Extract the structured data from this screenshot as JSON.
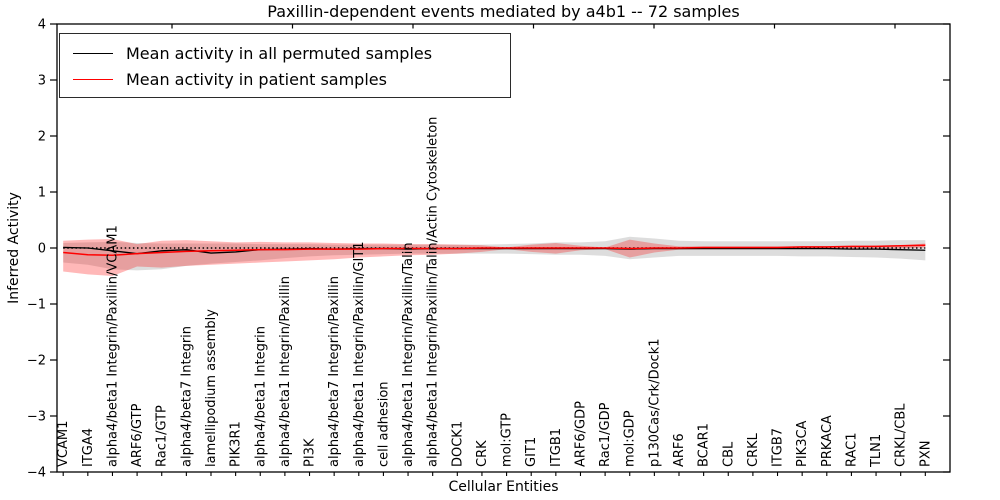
{
  "chart_data": {
    "type": "line",
    "title": "Paxillin-dependent events mediated by a4b1 -- 72 samples",
    "xlabel": "Cellular Entities",
    "ylabel": "Inferred Activity",
    "ylim": [
      -4,
      4
    ],
    "grid": false,
    "legend_position": "upper left",
    "baseline": {
      "y": 0,
      "style": "dotted",
      "color": "#000000"
    },
    "yticks": [
      4,
      3,
      2,
      1,
      0,
      -1,
      -2,
      -3,
      -4
    ],
    "ytick_labels": [
      "4",
      "3",
      "2",
      "1",
      "0",
      "−1",
      "−2",
      "−3",
      "−4"
    ],
    "categories": [
      "VCAM1",
      "ITGA4",
      "alpha4/beta1 Integrin/Paxillin/VCAM1",
      "ARF6/GTP",
      "Rac1/GTP",
      "alpha4/beta7 Integrin",
      "lamellipodium assembly",
      "PIK3R1",
      "alpha4/beta1 Integrin",
      "alpha4/beta1 Integrin/Paxillin",
      "PI3K",
      "alpha4/beta7 Integrin/Paxillin",
      "alpha4/beta1 Integrin/Paxillin/GIT1",
      "cell adhesion",
      "alpha4/beta1 Integrin/Paxillin/Talin",
      "alpha4/beta1 Integrin/Paxillin/Talin/Actin Cytoskeleton",
      "DOCK1",
      "CRK",
      "mol:GTP",
      "GIT1",
      "ITGB1",
      "ARF6/GDP",
      "Rac1/GDP",
      "mol:GDP",
      "p130Cas/Crk/Dock1",
      "ARF6",
      "BCAR1",
      "CBL",
      "CRKL",
      "ITGB7",
      "PIK3CA",
      "PRKACA",
      "RAC1",
      "TLN1",
      "CRKL/CBL",
      "PXN"
    ],
    "series": [
      {
        "name": "Mean activity in all permuted samples",
        "id": "permuted-mean",
        "color": "#000000",
        "values": [
          0.01,
          0.0,
          -0.05,
          -0.1,
          -0.05,
          -0.03,
          -0.09,
          -0.07,
          -0.03,
          -0.02,
          -0.01,
          -0.02,
          -0.01,
          -0.01,
          -0.02,
          -0.01,
          -0.01,
          -0.01,
          -0.01,
          -0.01,
          -0.01,
          -0.01,
          -0.01,
          -0.02,
          -0.01,
          -0.01,
          -0.01,
          -0.01,
          -0.01,
          -0.01,
          -0.01,
          -0.01,
          -0.02,
          -0.02,
          -0.03,
          -0.04
        ]
      },
      {
        "name": "Mean activity in patient samples",
        "id": "patient-mean",
        "color": "#ff0000",
        "values": [
          -0.08,
          -0.12,
          -0.13,
          -0.1,
          -0.08,
          -0.06,
          -0.05,
          -0.04,
          -0.03,
          -0.03,
          -0.02,
          -0.02,
          -0.02,
          -0.01,
          -0.01,
          -0.01,
          -0.01,
          0.0,
          0.0,
          0.0,
          0.0,
          0.0,
          0.0,
          -0.01,
          0.0,
          0.0,
          0.01,
          0.01,
          0.01,
          0.01,
          0.02,
          0.02,
          0.03,
          0.03,
          0.04,
          0.05
        ]
      }
    ],
    "bands": [
      {
        "name": "permuted-samples-range",
        "color": "rgba(120,120,120,0.25)",
        "upper": [
          0.09,
          0.1,
          0.11,
          0.09,
          0.08,
          0.08,
          0.08,
          0.08,
          0.07,
          0.07,
          0.07,
          0.06,
          0.06,
          0.06,
          0.06,
          0.06,
          0.06,
          0.06,
          0.07,
          0.08,
          0.1,
          0.1,
          0.12,
          0.2,
          0.17,
          0.13,
          0.12,
          0.12,
          0.12,
          0.12,
          0.12,
          0.12,
          0.13,
          0.13,
          0.14,
          0.14
        ],
        "lower": [
          -0.26,
          -0.3,
          -0.38,
          -0.4,
          -0.38,
          -0.32,
          -0.28,
          -0.25,
          -0.22,
          -0.18,
          -0.15,
          -0.13,
          -0.12,
          -0.11,
          -0.1,
          -0.1,
          -0.1,
          -0.1,
          -0.1,
          -0.11,
          -0.12,
          -0.12,
          -0.14,
          -0.2,
          -0.17,
          -0.14,
          -0.14,
          -0.14,
          -0.14,
          -0.14,
          -0.15,
          -0.15,
          -0.16,
          -0.17,
          -0.19,
          -0.22
        ]
      },
      {
        "name": "patient-samples-range",
        "color": "rgba(255,0,0,0.28)",
        "upper": [
          0.13,
          0.15,
          0.16,
          0.07,
          0.13,
          0.14,
          0.12,
          0.1,
          0.11,
          0.1,
          0.1,
          0.09,
          0.08,
          0.08,
          0.07,
          0.07,
          0.06,
          0.05,
          0.01,
          0.06,
          0.09,
          0.04,
          0.01,
          0.15,
          0.08,
          0.03,
          0.03,
          0.03,
          0.03,
          0.03,
          0.03,
          0.03,
          0.03,
          0.04,
          0.05,
          0.08
        ],
        "lower": [
          -0.42,
          -0.47,
          -0.5,
          -0.33,
          -0.35,
          -0.32,
          -0.3,
          -0.28,
          -0.26,
          -0.24,
          -0.22,
          -0.2,
          -0.17,
          -0.15,
          -0.13,
          -0.12,
          -0.1,
          -0.07,
          -0.02,
          -0.07,
          -0.1,
          -0.04,
          -0.02,
          -0.17,
          -0.08,
          -0.03,
          -0.02,
          -0.02,
          -0.02,
          -0.02,
          -0.02,
          -0.02,
          -0.02,
          -0.02,
          -0.01,
          0.01
        ]
      }
    ]
  }
}
